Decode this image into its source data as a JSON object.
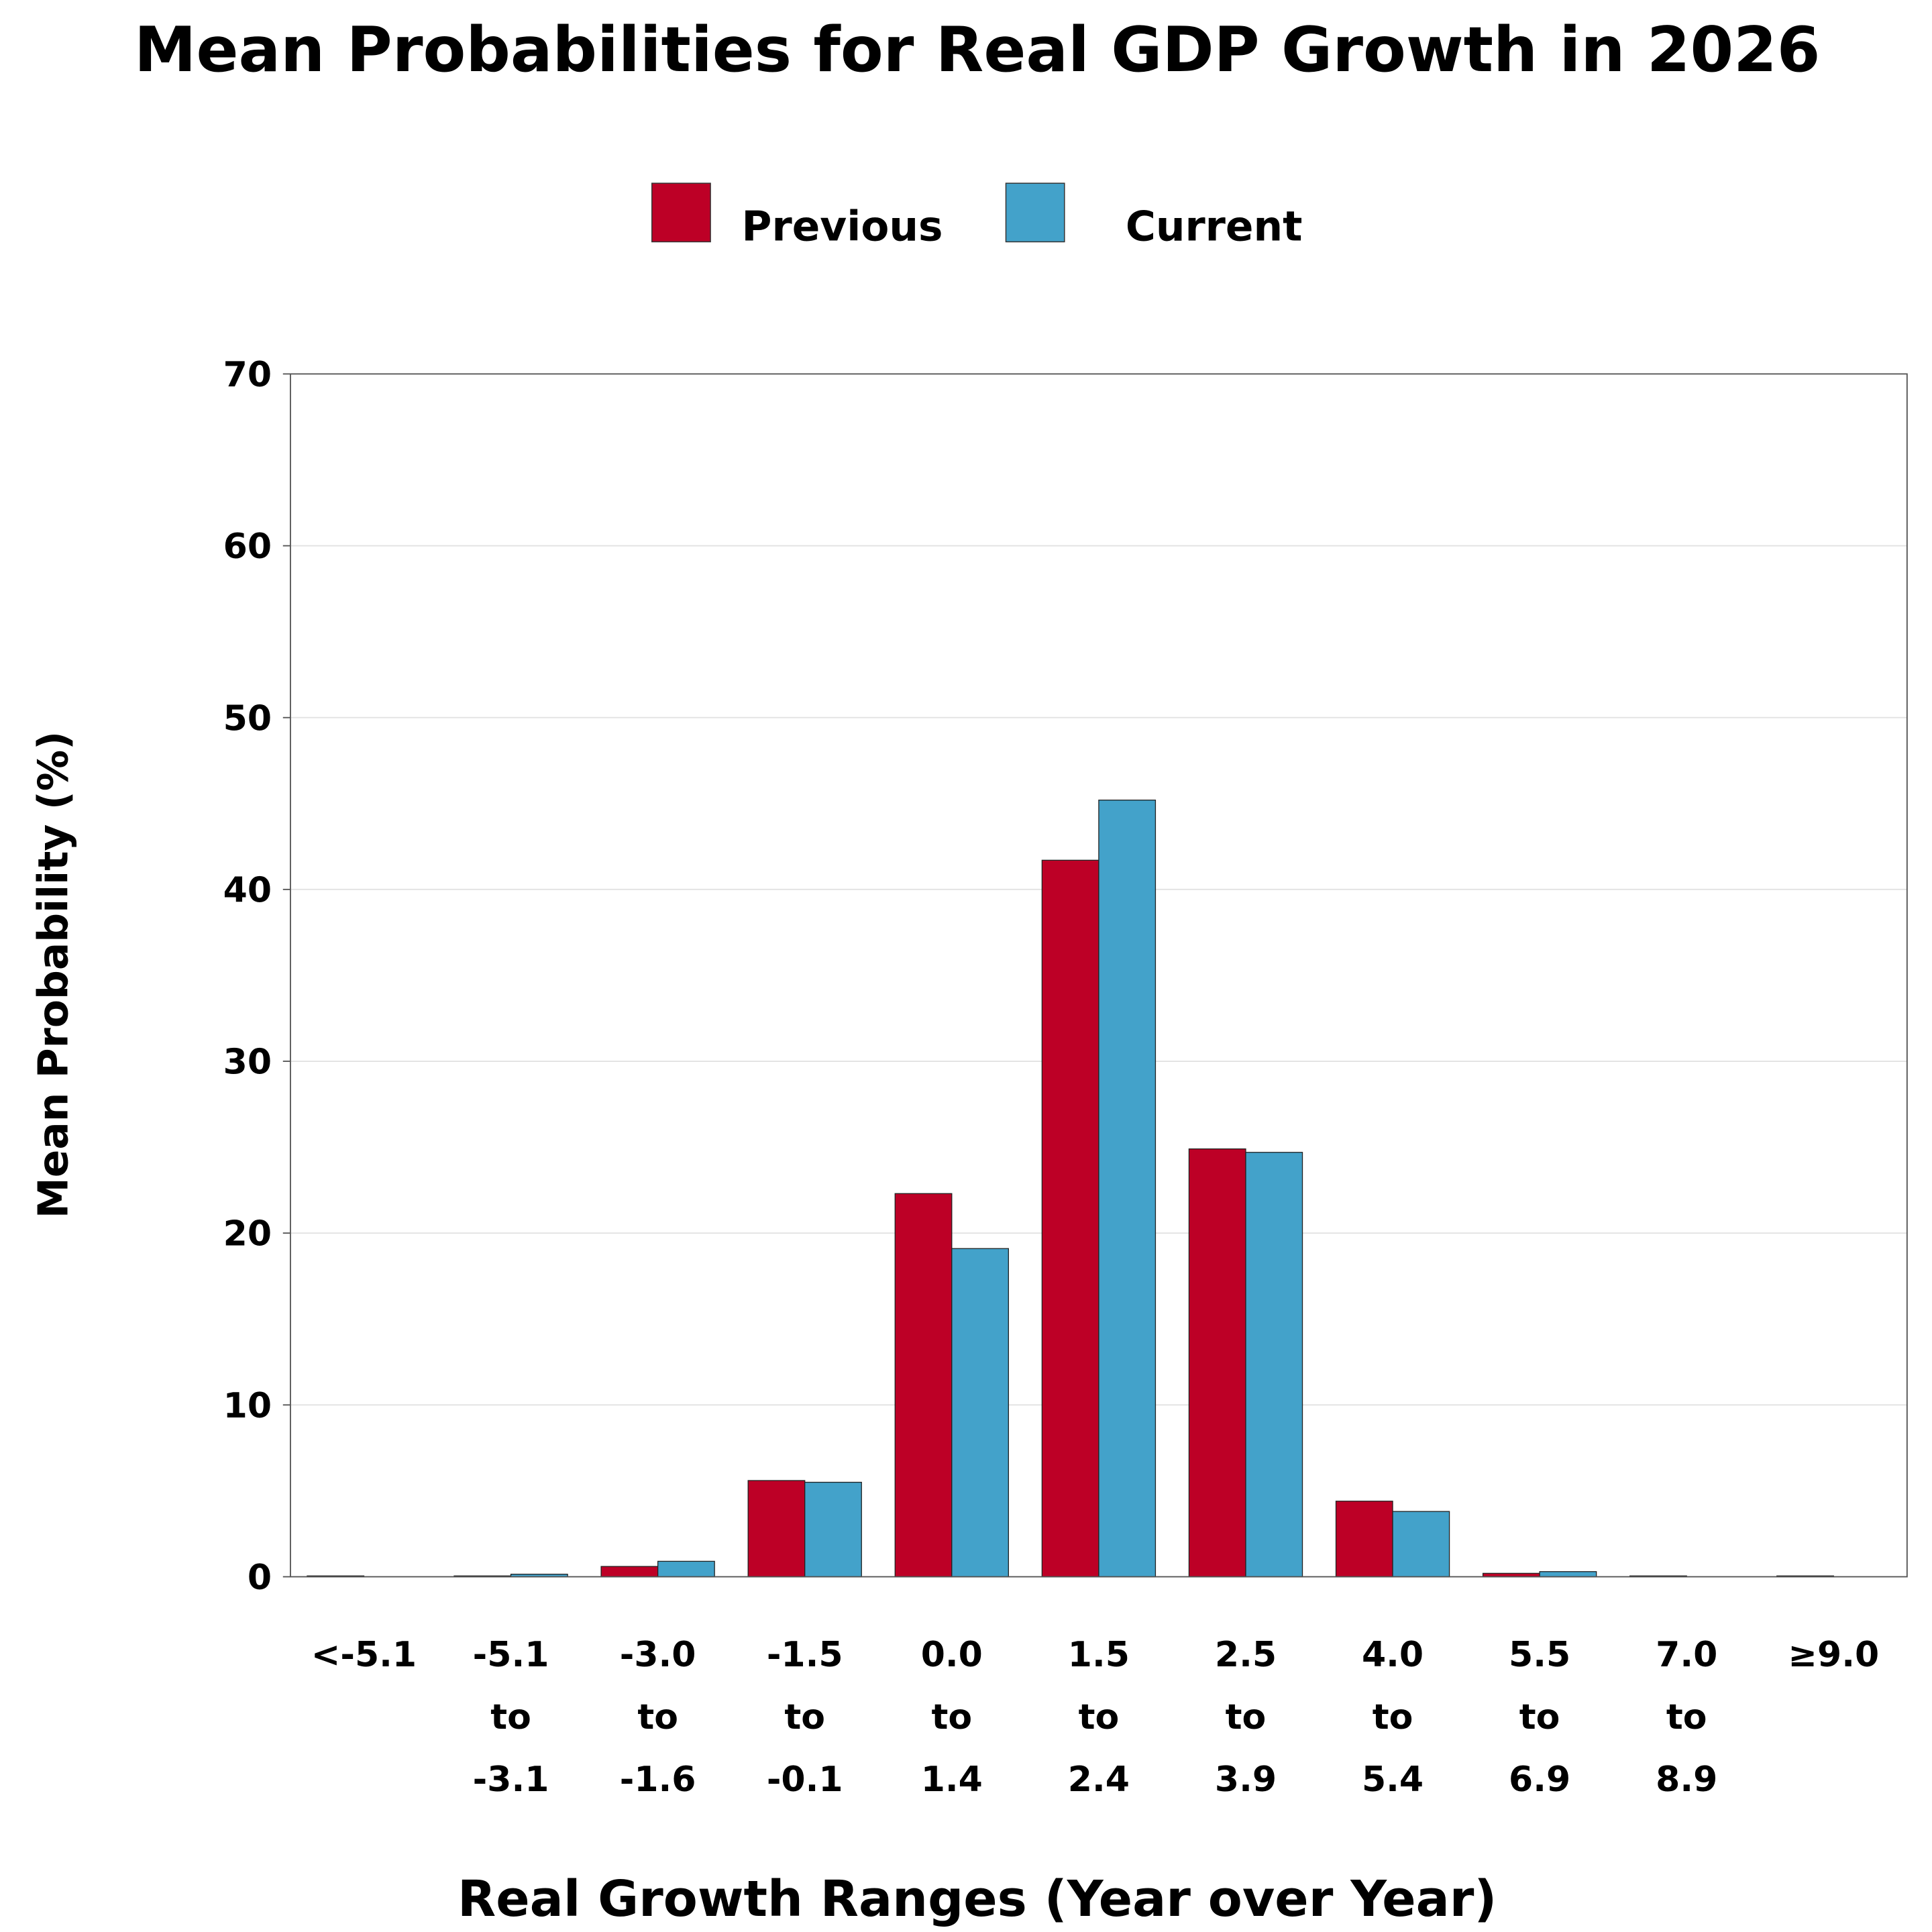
{
  "chart_data": {
    "type": "bar",
    "title": "Mean Probabilities for Real GDP Growth in 2026",
    "xlabel": "Real Growth Ranges (Year over Year)",
    "ylabel": "Mean Probability (%)",
    "ylim": [
      0,
      70
    ],
    "yticks": [
      "0",
      "10",
      "20",
      "30",
      "40",
      "50",
      "60",
      "70"
    ],
    "grid": true,
    "legend_position": "top-center",
    "categories": [
      [
        "<-5.1"
      ],
      [
        "-5.1",
        "to",
        "-3.1"
      ],
      [
        "-3.0",
        "to",
        "-1.6"
      ],
      [
        "-1.5",
        "to",
        "-0.1"
      ],
      [
        "0.0",
        "to",
        "1.4"
      ],
      [
        "1.5",
        "to",
        "2.4"
      ],
      [
        "2.5",
        "to",
        "3.9"
      ],
      [
        "4.0",
        "to",
        "5.4"
      ],
      [
        "5.5",
        "to",
        "6.9"
      ],
      [
        "7.0",
        "to",
        "8.9"
      ],
      [
        "≥9.0"
      ]
    ],
    "series": [
      {
        "name": "Previous",
        "color": "#BD0026",
        "values": [
          0.05,
          0.05,
          0.6,
          5.6,
          22.3,
          41.7,
          24.9,
          4.4,
          0.2,
          0.05,
          0.05
        ]
      },
      {
        "name": "Current",
        "color": "#43A2CA",
        "values": [
          0,
          0.15,
          0.9,
          5.5,
          19.1,
          45.2,
          24.7,
          3.8,
          0.3,
          0,
          0
        ]
      }
    ]
  }
}
